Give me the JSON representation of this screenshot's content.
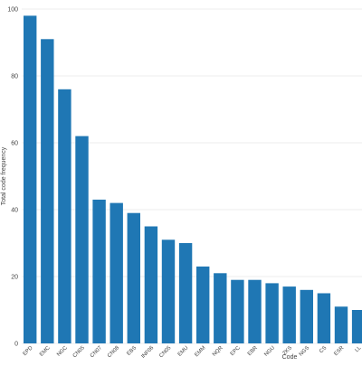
{
  "chart_data": {
    "type": "bar",
    "title": "",
    "xlabel": "Code",
    "ylabel": "Total code frequency",
    "categories": [
      "EPD",
      "EMC",
      "NGC",
      "CN05",
      "CN07",
      "CN08",
      "EBS",
      "INF06",
      "CN05",
      "EMU",
      "EMM",
      "NQR",
      "EPC",
      "EBR",
      "NGU",
      "ZKS",
      "NGS",
      "CS",
      "ESR",
      "LL"
    ],
    "values": [
      98,
      91,
      76,
      62,
      43,
      42,
      39,
      35,
      31,
      30,
      23,
      21,
      19,
      19,
      18,
      17,
      16,
      15,
      11,
      10
    ],
    "ylim": [
      0,
      100
    ],
    "yticks": [
      0,
      20,
      40,
      60,
      80,
      100
    ],
    "grid": true,
    "bar_color": "#1f77b4",
    "grid_color": "#eeeeee"
  }
}
